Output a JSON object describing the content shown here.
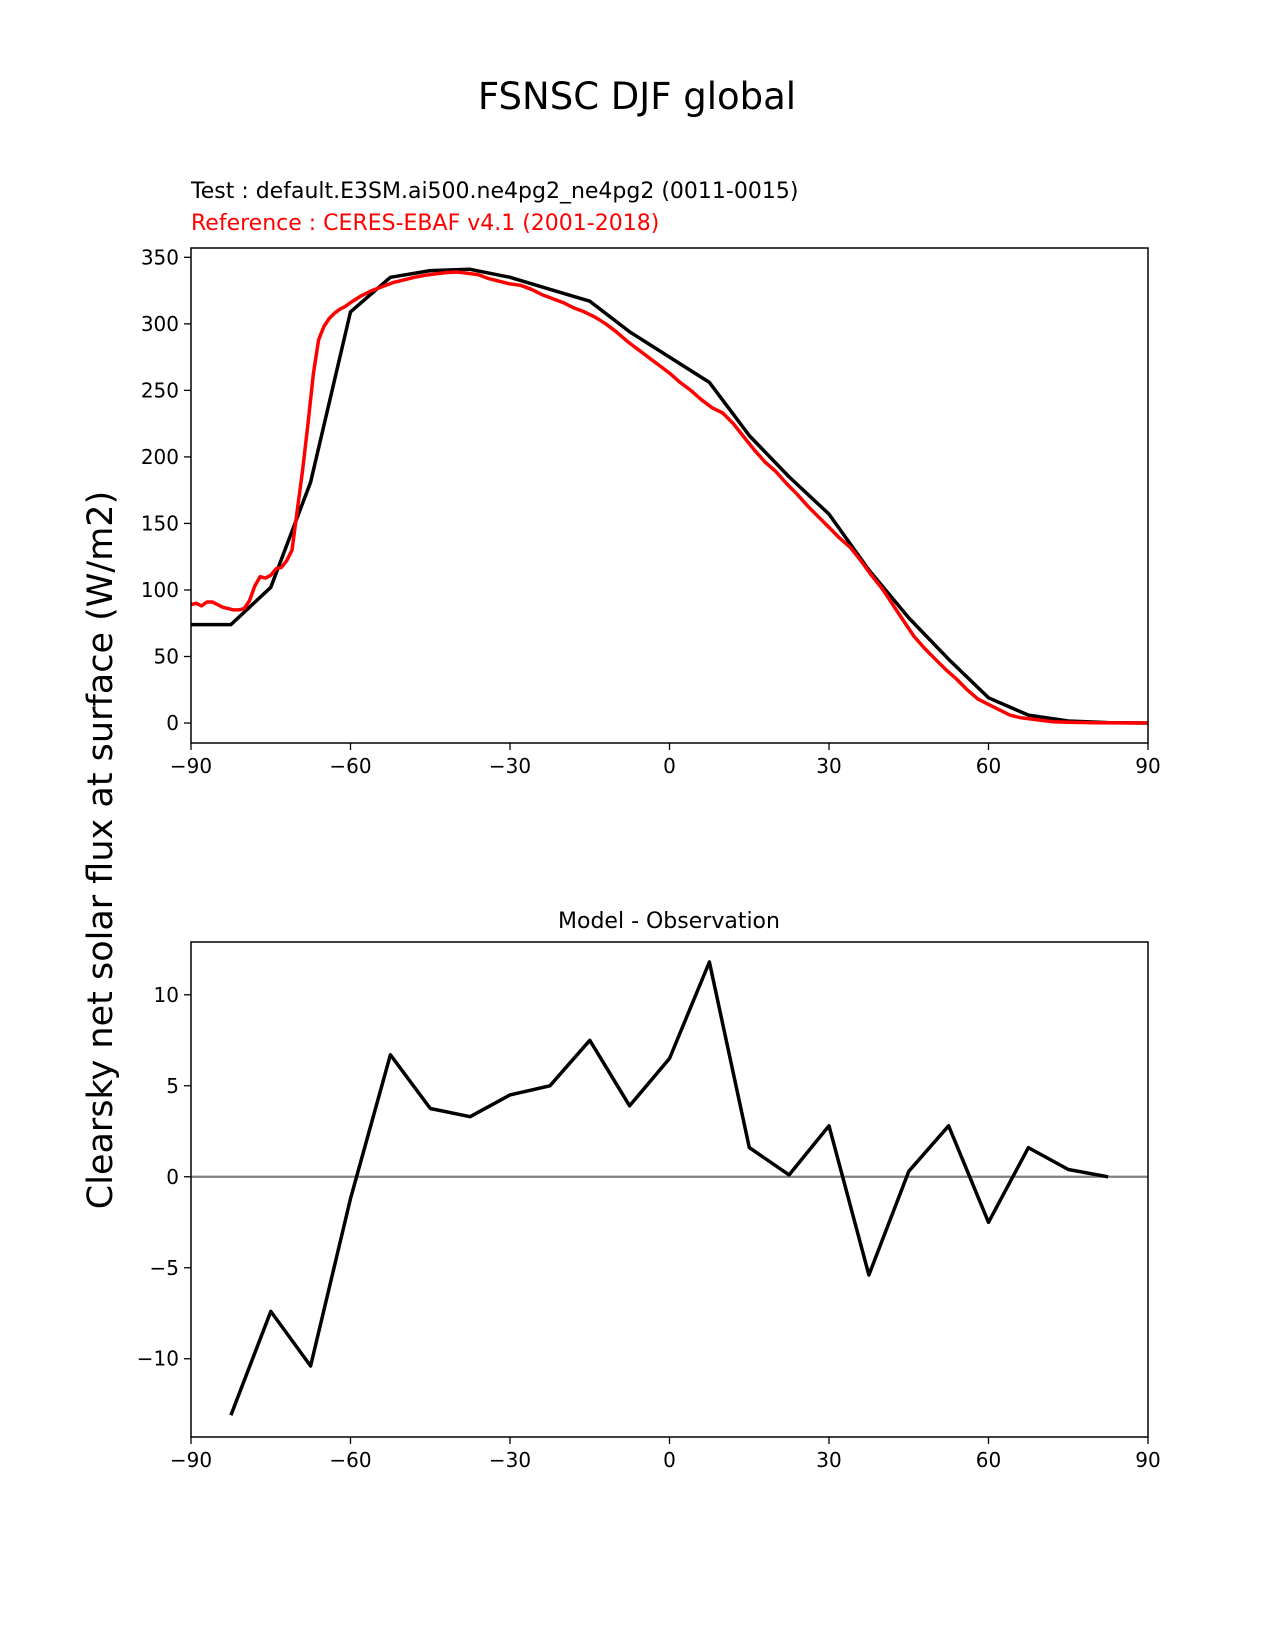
{
  "figure": {
    "title": "FSNSC DJF global",
    "colors": {
      "test": "#000000",
      "reference": "#ff0000",
      "zero_line": "#808080"
    }
  },
  "chart_data": [
    {
      "type": "line",
      "title": "",
      "test_label": "Test : default.E3SM.ai500.ne4pg2_ne4pg2 (0011-0015)",
      "reference_label": "Reference : CERES-EBAF v4.1 (2001-2018)",
      "ylabel": "Clearsky net solar flux at surface (W/m2)",
      "xlabel": "",
      "xlim": [
        -90,
        90
      ],
      "ylim": [
        -15,
        357
      ],
      "xticks": [
        -90,
        -60,
        -30,
        0,
        30,
        60,
        90
      ],
      "xtick_labels": [
        "−90",
        "−60",
        "−30",
        "0",
        "30",
        "60",
        "90"
      ],
      "yticks": [
        0,
        50,
        100,
        150,
        200,
        250,
        300,
        350
      ],
      "ytick_labels": [
        "0",
        "50",
        "100",
        "150",
        "200",
        "250",
        "300",
        "350"
      ],
      "series": [
        {
          "name": "Test",
          "color": "#000000",
          "x": [
            -90,
            -82.5,
            -75,
            -67.5,
            -60,
            -52.5,
            -45,
            -37.5,
            -30,
            -22.5,
            -15,
            -7.5,
            0,
            7.5,
            15,
            22.5,
            30,
            37.5,
            45,
            52.5,
            60,
            67.5,
            75,
            82.5,
            90
          ],
          "y": [
            74,
            74,
            102,
            181,
            309,
            335,
            340,
            341,
            335,
            326,
            317,
            294,
            275,
            256,
            216,
            185,
            157,
            115,
            79,
            48,
            19,
            6,
            1.5,
            0.3,
            0
          ]
        },
        {
          "name": "Reference",
          "color": "#ff0000",
          "x": [
            -90,
            -89,
            -88,
            -87,
            -86,
            -85,
            -84,
            -83,
            -82,
            -81,
            -80,
            -79,
            -78,
            -77,
            -76,
            -75,
            -74,
            -73,
            -72,
            -71,
            -70,
            -69,
            -68,
            -67,
            -66,
            -65,
            -64,
            -63,
            -62,
            -61,
            -60,
            -58,
            -56,
            -54,
            -52,
            -50,
            -48,
            -46,
            -44,
            -42,
            -40,
            -38,
            -36,
            -34,
            -32,
            -30,
            -28,
            -26,
            -24,
            -22,
            -20,
            -18,
            -16,
            -14,
            -12,
            -10,
            -8,
            -6,
            -4,
            -2,
            0,
            2,
            4,
            6,
            8,
            10,
            12,
            14,
            16,
            18,
            20,
            22,
            24,
            26,
            28,
            30,
            32,
            34,
            36,
            38,
            40,
            42,
            44,
            46,
            48,
            50,
            52,
            54,
            56,
            58,
            60,
            62,
            64,
            66,
            68,
            70,
            72,
            75,
            80,
            85,
            90
          ],
          "y": [
            89,
            90,
            88,
            91,
            91,
            89,
            87,
            86,
            85,
            85,
            86,
            92,
            103,
            110,
            109,
            111,
            116,
            117,
            122,
            130,
            160,
            190,
            225,
            262,
            288,
            298,
            304,
            308,
            311,
            313,
            316,
            321,
            325,
            328,
            331,
            333,
            335,
            336.5,
            337.5,
            338.5,
            339,
            338,
            337,
            334,
            332,
            330,
            329,
            326,
            322,
            319,
            316,
            312,
            309,
            305,
            300,
            294,
            287,
            281,
            275,
            269,
            263,
            256,
            250,
            243,
            237,
            233,
            225,
            215,
            205,
            196,
            189,
            180,
            172,
            163,
            155,
            147,
            139,
            132,
            122,
            111,
            101,
            89,
            77,
            65,
            56,
            48,
            40,
            33,
            25,
            18,
            14,
            10,
            6,
            4,
            3,
            2,
            1,
            0.6,
            0.2,
            0.1,
            0
          ]
        }
      ]
    },
    {
      "type": "line",
      "title": "Model - Observation",
      "xlabel": "",
      "ylabel": "",
      "xlim": [
        -90,
        90
      ],
      "ylim": [
        -14.3,
        12.9
      ],
      "xticks": [
        -90,
        -60,
        -30,
        0,
        30,
        60,
        90
      ],
      "xtick_labels": [
        "−90",
        "−60",
        "−30",
        "0",
        "30",
        "60",
        "90"
      ],
      "yticks": [
        -10,
        -5,
        0,
        5,
        10
      ],
      "ytick_labels": [
        "−10",
        "−5",
        "0",
        "5",
        "10"
      ],
      "zero_line": 0,
      "series": [
        {
          "name": "",
          "color": "#000000",
          "x": [
            -82.5,
            -75,
            -67.5,
            -60,
            -52.5,
            -45,
            -37.5,
            -30,
            -22.5,
            -15,
            -7.5,
            0,
            7.5,
            15,
            22.5,
            30,
            37.5,
            45,
            52.5,
            60,
            67.5,
            75,
            82.5
          ],
          "y": [
            -13.1,
            -7.4,
            -10.4,
            -1.2,
            6.7,
            3.75,
            3.3,
            4.5,
            5.0,
            7.5,
            3.9,
            6.5,
            11.8,
            1.6,
            0.1,
            2.8,
            -5.4,
            0.3,
            2.8,
            -2.5,
            1.6,
            0.4,
            0.0
          ]
        }
      ]
    }
  ]
}
